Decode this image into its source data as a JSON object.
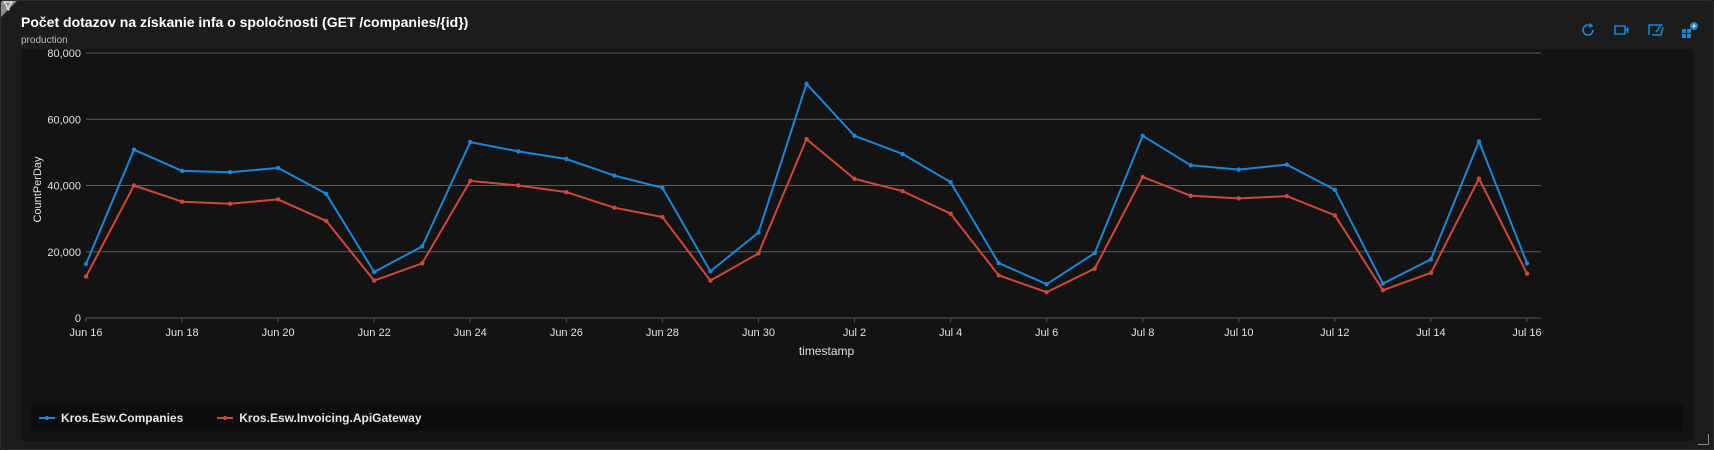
{
  "tile": {
    "title": "Počet dotazov na získanie infa o spoločnosti (GET /companies/{id})",
    "subtitle": "production"
  },
  "toolbar": [
    {
      "name": "refresh-icon",
      "label": "Refresh"
    },
    {
      "name": "pin-icon",
      "label": "Pin to dashboard"
    },
    {
      "name": "edit-query-icon",
      "label": "Edit query"
    },
    {
      "name": "workbooks-icon",
      "label": "Open in workbook"
    }
  ],
  "colors": {
    "series1": "#1a86d6",
    "series2": "#d0473a",
    "grid": "#5a5a5a",
    "axis_text": "#e0e0e0"
  },
  "chart_data": {
    "type": "line",
    "xlabel": "timestamp",
    "ylabel": "CountPerDay",
    "ylim": [
      0,
      80000
    ],
    "yticks": [
      0,
      20000,
      40000,
      60000,
      80000
    ],
    "ytick_labels": [
      "0",
      "20,000",
      "40,000",
      "60,000",
      "80,000"
    ],
    "x": [
      "Jun 16",
      "Jun 17",
      "Jun 18",
      "Jun 19",
      "Jun 20",
      "Jun 21",
      "Jun 22",
      "Jun 23",
      "Jun 24",
      "Jun 25",
      "Jun 26",
      "Jun 27",
      "Jun 28",
      "Jun 29",
      "Jun 30",
      "Jul 1",
      "Jul 2",
      "Jul 3",
      "Jul 4",
      "Jul 5",
      "Jul 6",
      "Jul 7",
      "Jul 8",
      "Jul 9",
      "Jul 10",
      "Jul 11",
      "Jul 12",
      "Jul 13",
      "Jul 14",
      "Jul 15",
      "Jul 16"
    ],
    "xtick_labels": [
      "Jun 16",
      "Jun 18",
      "Jun 20",
      "Jun 22",
      "Jun 24",
      "Jun 26",
      "Jun 28",
      "Jun 30",
      "Jul 2",
      "Jul 4",
      "Jul 6",
      "Jul 8",
      "Jul 10",
      "Jul 12",
      "Jul 14",
      "Jul 16"
    ],
    "grid": true,
    "legend": "bottom",
    "series": [
      {
        "name": "Kros.Esw.Companies",
        "values": [
          16300,
          50800,
          44400,
          44000,
          45300,
          37500,
          13900,
          21600,
          53100,
          50300,
          48000,
          43000,
          39300,
          14100,
          25800,
          70700,
          55000,
          49500,
          41000,
          16600,
          10200,
          19600,
          55000,
          46100,
          44800,
          46300,
          38700,
          10400,
          17700,
          53300,
          16500
        ]
      },
      {
        "name": "Kros.Esw.Invoicing.ApiGateway",
        "values": [
          12500,
          40000,
          35100,
          34500,
          35800,
          29300,
          11300,
          16500,
          41400,
          40000,
          38000,
          33300,
          30500,
          11300,
          19500,
          54000,
          42000,
          38300,
          31500,
          12900,
          7800,
          14900,
          42600,
          36900,
          36100,
          36800,
          31000,
          8400,
          13600,
          42100,
          13400
        ]
      }
    ]
  }
}
